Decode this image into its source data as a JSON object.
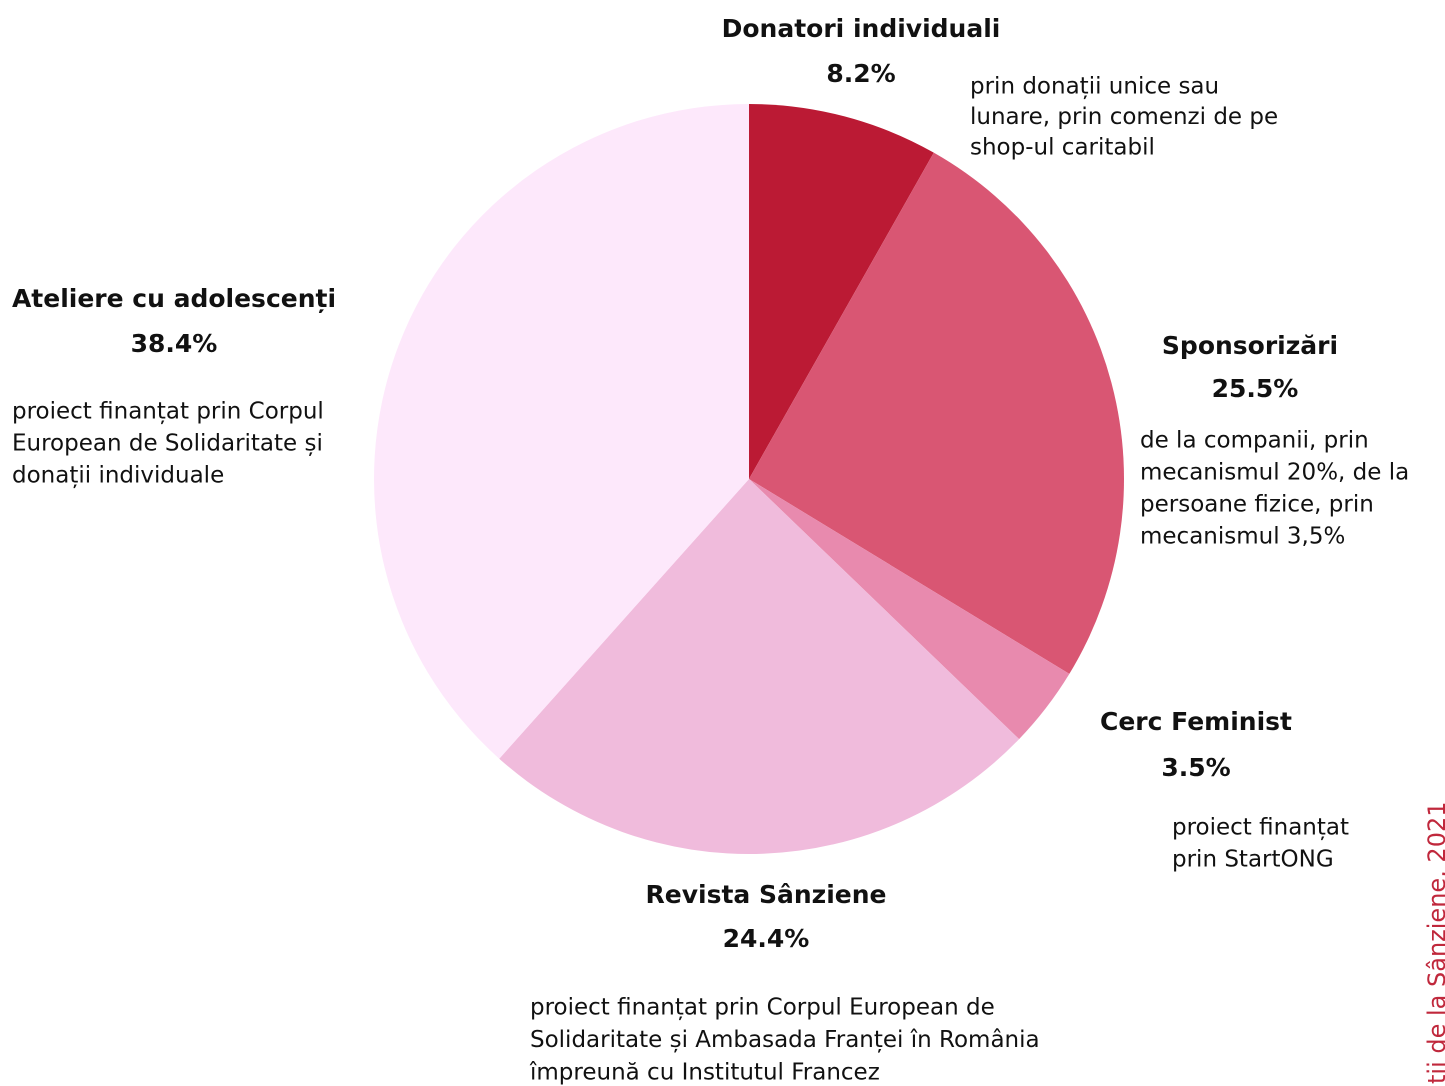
{
  "chart_data": {
    "type": "pie",
    "categories": [
      "Donatori individuali",
      "Sponsorizări",
      "Cerc Feminist",
      "Revista Sânziene",
      "Ateliere cu adolescenți"
    ],
    "values": [
      8.2,
      25.5,
      3.5,
      24.4,
      38.4
    ],
    "value_labels": [
      "8.2%",
      "25.5%",
      "3.5%",
      "24.4%",
      "38.4%"
    ],
    "colors": [
      "#bb1a34",
      "#d95673",
      "#e88aae",
      "#f0bbdc",
      "#fde8fb"
    ],
    "descriptions": [
      [
        "prin donații unice sau",
        "lunare, prin comenzi de pe",
        "shop-ul caritabil"
      ],
      [
        "de la companii, prin",
        "mecanismul 20%, de la",
        "persoane fizice, prin",
        "mecanismul 3,5%"
      ],
      [
        "proiect finanțat",
        "prin StartONG"
      ],
      [
        "proiect finanțat prin Corpul European de",
        "Solidaritate și Ambasada Franței în România",
        "împreună cu Institutul Francez"
      ],
      [
        "proiect finanțat prin Corpul",
        "European de Solidaritate și",
        "donații individuale"
      ]
    ],
    "credit": "ții de la Sânziene, 2021"
  }
}
